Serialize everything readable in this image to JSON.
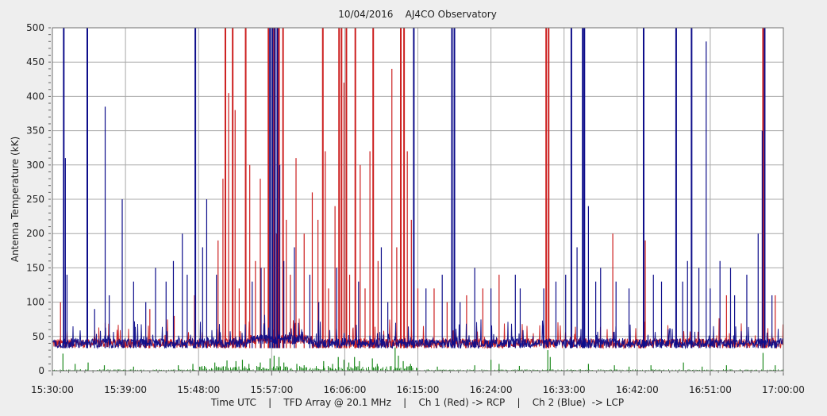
{
  "chart_data": {
    "type": "line",
    "title": "10/04/2016    AJ4CO Observatory",
    "xlabel": "Time UTC    |    TFD Array @ 20.1 MHz    |    Ch 1 (Red) -> RCP    |    Ch 2 (Blue)  -> LCP",
    "ylabel": "Antenna Temperature (kK)",
    "ylim": [
      0,
      500
    ],
    "yticks": [
      0,
      50,
      100,
      150,
      200,
      250,
      300,
      350,
      400,
      450,
      500
    ],
    "xlim_minutes": [
      930,
      1020
    ],
    "xticks_minutes": [
      930,
      939,
      948,
      957,
      966,
      975,
      984,
      993,
      1002,
      1011,
      1020
    ],
    "xtick_labels": [
      "15:30:00",
      "15:39:00",
      "15:48:00",
      "15:57:00",
      "16:06:00",
      "16:15:00",
      "16:24:00",
      "16:33:00",
      "16:42:00",
      "16:51:00",
      "17:00:00"
    ],
    "grid": true,
    "baseline_kK": 33,
    "series": [
      {
        "name": "Ch 1 (Red) -> RCP",
        "color": "#cc1f1f",
        "spikes": [
          [
            931.0,
            100
          ],
          [
            936.5,
            70
          ],
          [
            942.0,
            90
          ],
          [
            945.0,
            80
          ],
          [
            947.5,
            110
          ],
          [
            950.4,
            190
          ],
          [
            951.0,
            280
          ],
          [
            951.3,
            500
          ],
          [
            951.7,
            405
          ],
          [
            952.2,
            500
          ],
          [
            952.5,
            380
          ],
          [
            953.0,
            120
          ],
          [
            953.8,
            500
          ],
          [
            954.3,
            300
          ],
          [
            955.0,
            160
          ],
          [
            955.6,
            280
          ],
          [
            956.1,
            150
          ],
          [
            956.6,
            500
          ],
          [
            957.3,
            500
          ],
          [
            957.6,
            200
          ],
          [
            957.9,
            500
          ],
          [
            958.4,
            500
          ],
          [
            958.8,
            220
          ],
          [
            959.3,
            140
          ],
          [
            960.0,
            310
          ],
          [
            961.0,
            200
          ],
          [
            962.0,
            260
          ],
          [
            962.7,
            220
          ],
          [
            963.3,
            500
          ],
          [
            963.6,
            320
          ],
          [
            964.0,
            120
          ],
          [
            964.8,
            240
          ],
          [
            965.3,
            500
          ],
          [
            965.6,
            500
          ],
          [
            965.9,
            420
          ],
          [
            966.2,
            500
          ],
          [
            966.6,
            140
          ],
          [
            967.3,
            500
          ],
          [
            967.9,
            300
          ],
          [
            968.5,
            120
          ],
          [
            969.1,
            320
          ],
          [
            969.5,
            500
          ],
          [
            970.1,
            160
          ],
          [
            971.8,
            440
          ],
          [
            972.4,
            180
          ],
          [
            972.9,
            500
          ],
          [
            973.3,
            500
          ],
          [
            973.7,
            320
          ],
          [
            974.2,
            220
          ],
          [
            975.0,
            120
          ],
          [
            977.0,
            120
          ],
          [
            978.6,
            100
          ],
          [
            981.0,
            110
          ],
          [
            983.0,
            120
          ],
          [
            985.0,
            140
          ],
          [
            990.8,
            500
          ],
          [
            991.1,
            500
          ],
          [
            999.0,
            200
          ],
          [
            1003.0,
            190
          ],
          [
            1013.0,
            110
          ],
          [
            1017.5,
            500
          ],
          [
            1019.0,
            110
          ]
        ]
      },
      {
        "name": "Ch 2 (Blue) -> LCP",
        "color": "#0d0d8a",
        "spikes": [
          [
            931.4,
            500
          ],
          [
            931.6,
            310
          ],
          [
            931.8,
            140
          ],
          [
            934.3,
            500
          ],
          [
            935.2,
            90
          ],
          [
            936.5,
            385
          ],
          [
            937.0,
            110
          ],
          [
            938.6,
            250
          ],
          [
            940.0,
            130
          ],
          [
            941.5,
            100
          ],
          [
            942.7,
            150
          ],
          [
            944.0,
            130
          ],
          [
            944.9,
            160
          ],
          [
            946.0,
            200
          ],
          [
            946.6,
            140
          ],
          [
            947.6,
            500
          ],
          [
            948.5,
            180
          ],
          [
            949.0,
            250
          ],
          [
            950.2,
            140
          ],
          [
            954.6,
            130
          ],
          [
            955.7,
            150
          ],
          [
            956.8,
            500
          ],
          [
            957.1,
            500
          ],
          [
            957.4,
            500
          ],
          [
            957.7,
            500
          ],
          [
            958.0,
            300
          ],
          [
            958.5,
            160
          ],
          [
            959.8,
            180
          ],
          [
            961.7,
            140
          ],
          [
            962.8,
            100
          ],
          [
            965.0,
            150
          ],
          [
            967.7,
            130
          ],
          [
            970.5,
            180
          ],
          [
            971.3,
            100
          ],
          [
            974.5,
            500
          ],
          [
            976.0,
            120
          ],
          [
            978.0,
            140
          ],
          [
            979.2,
            500
          ],
          [
            979.5,
            500
          ],
          [
            980.2,
            100
          ],
          [
            982.0,
            150
          ],
          [
            984.0,
            120
          ],
          [
            987.0,
            140
          ],
          [
            987.6,
            120
          ],
          [
            990.5,
            120
          ],
          [
            992.0,
            130
          ],
          [
            993.2,
            140
          ],
          [
            993.9,
            500
          ],
          [
            994.6,
            180
          ],
          [
            995.3,
            500
          ],
          [
            995.5,
            500
          ],
          [
            996.0,
            240
          ],
          [
            996.9,
            130
          ],
          [
            997.5,
            150
          ],
          [
            999.4,
            130
          ],
          [
            1001.0,
            120
          ],
          [
            1002.8,
            500
          ],
          [
            1004.0,
            140
          ],
          [
            1005.0,
            130
          ],
          [
            1006.8,
            500
          ],
          [
            1007.6,
            130
          ],
          [
            1008.2,
            160
          ],
          [
            1008.7,
            500
          ],
          [
            1009.6,
            150
          ],
          [
            1010.5,
            480
          ],
          [
            1011.0,
            120
          ],
          [
            1012.2,
            160
          ],
          [
            1013.5,
            150
          ],
          [
            1014.0,
            110
          ],
          [
            1015.5,
            140
          ],
          [
            1016.9,
            200
          ],
          [
            1017.4,
            350
          ],
          [
            1017.7,
            500
          ],
          [
            1018.6,
            110
          ]
        ]
      },
      {
        "name": "Ch diff (Green)",
        "color": "#1f8a1f",
        "baseline_kK": 0,
        "spikes": [
          [
            931.3,
            25
          ],
          [
            932.8,
            10
          ],
          [
            934.4,
            12
          ],
          [
            936.4,
            8
          ],
          [
            940.0,
            6
          ],
          [
            945.5,
            8
          ],
          [
            947.3,
            10
          ],
          [
            950.0,
            12
          ],
          [
            951.5,
            15
          ],
          [
            952.6,
            14
          ],
          [
            953.4,
            16
          ],
          [
            954.2,
            10
          ],
          [
            955.6,
            12
          ],
          [
            956.8,
            18
          ],
          [
            957.3,
            22
          ],
          [
            957.9,
            20
          ],
          [
            958.5,
            12
          ],
          [
            960.1,
            10
          ],
          [
            961.0,
            8
          ],
          [
            963.4,
            14
          ],
          [
            964.5,
            10
          ],
          [
            965.2,
            20
          ],
          [
            965.9,
            16
          ],
          [
            966.5,
            12
          ],
          [
            967.2,
            20
          ],
          [
            967.8,
            14
          ],
          [
            969.4,
            18
          ],
          [
            970.0,
            10
          ],
          [
            972.2,
            34
          ],
          [
            972.6,
            22
          ],
          [
            973.2,
            14
          ],
          [
            974.1,
            10
          ],
          [
            977.4,
            6
          ],
          [
            982.0,
            8
          ],
          [
            984.0,
            16
          ],
          [
            985.0,
            10
          ],
          [
            987.5,
            7
          ],
          [
            991.0,
            30
          ],
          [
            991.3,
            20
          ],
          [
            996.0,
            10
          ],
          [
            999.2,
            8
          ],
          [
            1001.0,
            6
          ],
          [
            1003.7,
            8
          ],
          [
            1007.7,
            12
          ],
          [
            1010.0,
            6
          ],
          [
            1013.0,
            8
          ],
          [
            1017.5,
            26
          ],
          [
            1019.0,
            8
          ]
        ]
      }
    ]
  }
}
